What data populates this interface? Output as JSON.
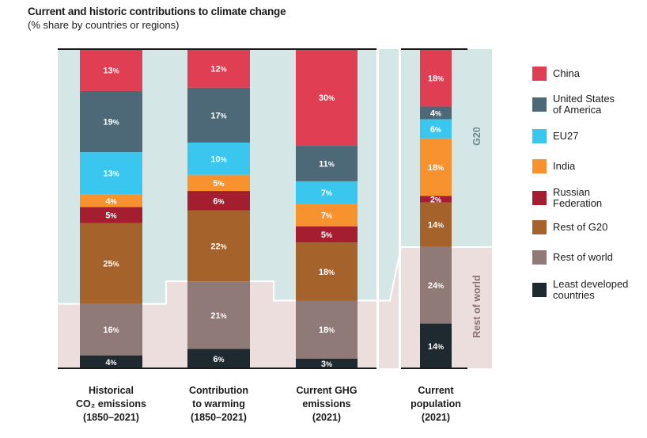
{
  "title": "Current and historic contributions to climate change",
  "subtitle": "(% share by countries or regions)",
  "chart_data": {
    "type": "bar",
    "stacked": true,
    "orientation": "vertical",
    "categories": [
      "Historical CO₂ emissions (1850–2021)",
      "Contribution to warming (1850–2021)",
      "Current GHG emissions (2021)",
      "Current population (2021)"
    ],
    "category_lines": [
      [
        "Historical",
        "CO₂ emissions",
        "(1850–2021)"
      ],
      [
        "Contribution",
        "to warming",
        "(1850–2021)"
      ],
      [
        "Current GHG",
        "emissions",
        "(2021)"
      ],
      [
        "Current",
        "population",
        "(2021)"
      ]
    ],
    "ylim": [
      0,
      100
    ],
    "series": [
      {
        "name": "China",
        "color": "#e03e52",
        "values": [
          13,
          12,
          30,
          18
        ]
      },
      {
        "name": "United States of America",
        "color": "#4d6978",
        "values": [
          19,
          17,
          11,
          4
        ]
      },
      {
        "name": "EU27",
        "color": "#3ac7ef",
        "values": [
          13,
          10,
          7,
          6
        ]
      },
      {
        "name": "India",
        "color": "#f7922e",
        "values": [
          4,
          5,
          7,
          18
        ]
      },
      {
        "name": "Russian Federation",
        "color": "#a51e30",
        "values": [
          5,
          6,
          5,
          2
        ]
      },
      {
        "name": "Rest of G20",
        "color": "#a5622a",
        "values": [
          25,
          22,
          18,
          14
        ]
      },
      {
        "name": "Rest of world",
        "color": "#8f7a78",
        "values": [
          16,
          21,
          18,
          24
        ]
      },
      {
        "name": "Least developed countries",
        "color": "#1e2a30",
        "values": [
          4,
          6,
          3,
          14
        ]
      }
    ],
    "unit_suffix": "%",
    "groups": [
      {
        "name": "G20",
        "color": "#d4e7e6",
        "text_color": "#6f8a8a"
      },
      {
        "name": "Rest of world",
        "color": "#ecdedd",
        "text_color": "#8a7070"
      }
    ]
  },
  "legend": [
    {
      "lines": [
        "China"
      ],
      "color": "#e03e52"
    },
    {
      "lines": [
        "United States",
        "of America"
      ],
      "color": "#4d6978"
    },
    {
      "lines": [
        "EU27"
      ],
      "color": "#3ac7ef"
    },
    {
      "lines": [
        "India"
      ],
      "color": "#f7922e"
    },
    {
      "lines": [
        "Russian",
        "Federation"
      ],
      "color": "#a51e30"
    },
    {
      "lines": [
        "Rest of G20"
      ],
      "color": "#a5622a"
    },
    {
      "lines": [
        "Rest of world"
      ],
      "color": "#8f7a78"
    },
    {
      "lines": [
        "Least developed",
        "countries"
      ],
      "color": "#1e2a30"
    }
  ]
}
